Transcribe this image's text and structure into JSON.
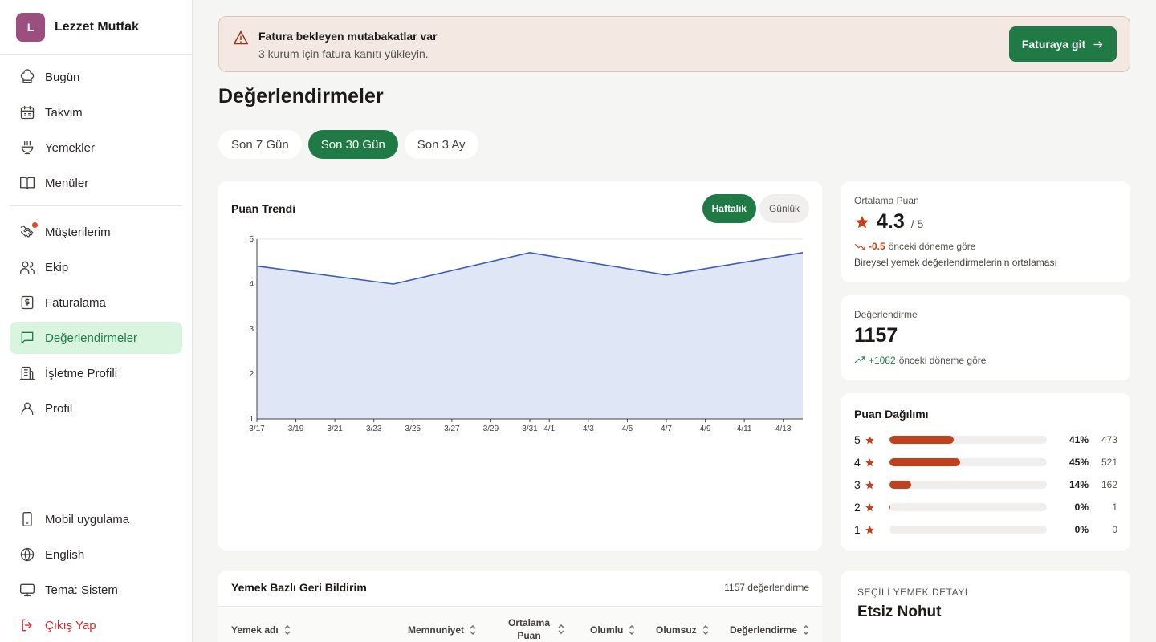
{
  "brand": {
    "initial": "L",
    "name": "Lezzet Mutfak"
  },
  "nav": {
    "items": [
      {
        "label": "Bugün",
        "icon": "chef-hat-icon"
      },
      {
        "label": "Takvim",
        "icon": "calendar-icon"
      },
      {
        "label": "Yemekler",
        "icon": "bowl-icon"
      },
      {
        "label": "Menüler",
        "icon": "book-icon"
      },
      {
        "label": "Müşterilerim",
        "icon": "handshake-icon"
      },
      {
        "label": "Ekip",
        "icon": "users-icon"
      },
      {
        "label": "Faturalama",
        "icon": "invoice-icon"
      },
      {
        "label": "Değerlendirmeler",
        "icon": "message-icon"
      },
      {
        "label": "İşletme Profili",
        "icon": "building-icon"
      },
      {
        "label": "Profil",
        "icon": "user-icon"
      }
    ],
    "bottom": [
      {
        "label": "Mobil uygulama",
        "icon": "smartphone-icon"
      },
      {
        "label": "English",
        "icon": "globe-icon"
      },
      {
        "label": "Tema: Sistem",
        "icon": "monitor-icon"
      },
      {
        "label": "Çıkış Yap",
        "icon": "logout-icon"
      }
    ]
  },
  "alert": {
    "title": "Fatura bekleyen mutabakatlar var",
    "text": "3 kurum için fatura kanıtı yükleyin.",
    "button": "Faturaya git"
  },
  "page": {
    "title": "Değerlendirmeler"
  },
  "periods": [
    "Son 7 Gün",
    "Son 30 Gün",
    "Son 3 Ay"
  ],
  "trend": {
    "title": "Puan Trendi",
    "toggle": [
      "Haftalık",
      "Günlük"
    ]
  },
  "chart_data": {
    "type": "area",
    "x": [
      "3/17",
      "3/24",
      "3/31",
      "4/7",
      "4/14"
    ],
    "y": [
      4.4,
      4.0,
      4.7,
      4.2,
      4.7
    ],
    "x_ticks": [
      "3/17",
      "3/19",
      "3/21",
      "3/23",
      "3/25",
      "3/27",
      "3/29",
      "3/31",
      "4/1",
      "4/3",
      "4/5",
      "4/7",
      "4/9",
      "4/11",
      "4/13"
    ],
    "y_ticks": [
      "1",
      "2",
      "3",
      "4",
      "5"
    ],
    "ylim": [
      1,
      5
    ],
    "grid": true,
    "line_color": "#3b5cb8",
    "fill_color": "#dfe6f5"
  },
  "average": {
    "label": "Ortalama Puan",
    "value": "4.3",
    "max": "/ 5",
    "delta": "-0.5",
    "delta_text": "önceki döneme göre",
    "sub": "Bireysel yemek değerlendirmelerinin ortalaması"
  },
  "count": {
    "label": "Değerlendirme",
    "value": "1157",
    "delta": "+1082",
    "delta_text": "önceki döneme göre"
  },
  "distribution": {
    "title": "Puan Dağılımı",
    "rows": [
      {
        "star": "5",
        "pct": "41%",
        "count": "473",
        "fraction": 0.41
      },
      {
        "star": "4",
        "pct": "45%",
        "count": "521",
        "fraction": 0.45
      },
      {
        "star": "3",
        "pct": "14%",
        "count": "162",
        "fraction": 0.14
      },
      {
        "star": "2",
        "pct": "0%",
        "count": "1",
        "fraction": 0.005
      },
      {
        "star": "1",
        "pct": "0%",
        "count": "0",
        "fraction": 0
      }
    ]
  },
  "table": {
    "title": "Yemek Bazlı Geri Bildirim",
    "count": "1157 değerlendirme",
    "columns": [
      "Yemek adı",
      "Memnuniyet",
      "Ortalama Puan",
      "Olumlu",
      "Olumsuz",
      "Değerlendirme"
    ]
  },
  "detail": {
    "label": "SEÇİLİ YEMEK DETAYI",
    "name": "Etsiz Nohut"
  },
  "colors": {
    "accent": "#1f7a45",
    "star": "#c2411d",
    "danger": "#d1262b"
  }
}
